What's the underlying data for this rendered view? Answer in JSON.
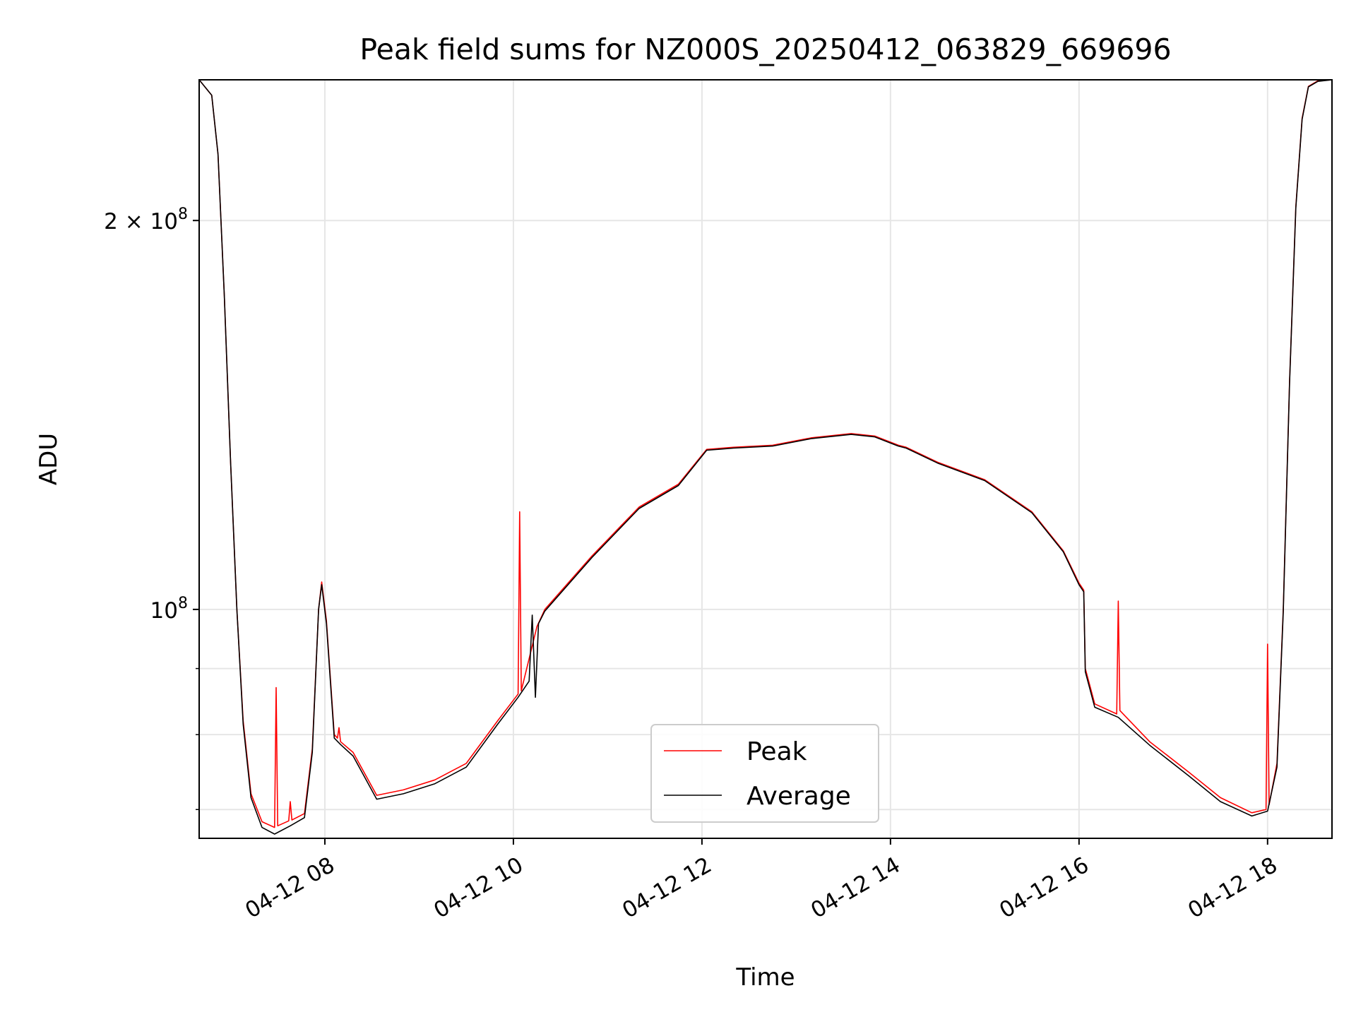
{
  "chart_data": {
    "type": "line",
    "title": "Peak field sums for NZ000S_20250412_063829_669696",
    "xlabel": "Time",
    "ylabel": "ADU",
    "y_scale": "log",
    "ylim": [
      66500000,
      257000000
    ],
    "xlim": [
      "2025-04-12 06:40",
      "2025-04-12 18:41"
    ],
    "x_ticks": [
      {
        "t": "2025-04-12 08:00",
        "label": "04-12 08"
      },
      {
        "t": "2025-04-12 10:00",
        "label": "04-12 10"
      },
      {
        "t": "2025-04-12 12:00",
        "label": "04-12 12"
      },
      {
        "t": "2025-04-12 14:00",
        "label": "04-12 14"
      },
      {
        "t": "2025-04-12 16:00",
        "label": "04-12 16"
      },
      {
        "t": "2025-04-12 18:00",
        "label": "04-12 18"
      }
    ],
    "y_major_ticks": [
      {
        "value": 100000000,
        "base": "10",
        "exp": "8",
        "prefix": ""
      },
      {
        "value": 200000000,
        "base": "10",
        "exp": "8",
        "prefix": "2 × "
      }
    ],
    "y_minor_ticks": [
      70000000,
      80000000,
      90000000
    ],
    "grid": true,
    "legend_position": "lower-center",
    "colors": {
      "peak": "#ff0000",
      "average": "#000000",
      "grid": "#e6e6e6"
    },
    "series": [
      {
        "name": "Peak",
        "color": "#ff0000",
        "points": [
          [
            "2025-04-12 06:40",
            257000000
          ],
          [
            "2025-04-12 06:48",
            250000000
          ],
          [
            "2025-04-12 06:52",
            225000000
          ],
          [
            "2025-04-12 06:56",
            175000000
          ],
          [
            "2025-04-12 07:00",
            130000000
          ],
          [
            "2025-04-12 07:04",
            100000000
          ],
          [
            "2025-04-12 07:08",
            82000000
          ],
          [
            "2025-04-12 07:13",
            72000000
          ],
          [
            "2025-04-12 07:20",
            68500000
          ],
          [
            "2025-04-12 07:28",
            67800000
          ],
          [
            "2025-04-12 07:29",
            87000000
          ],
          [
            "2025-04-12 07:30",
            68000000
          ],
          [
            "2025-04-12 07:37",
            68600000
          ],
          [
            "2025-04-12 07:38",
            71000000
          ],
          [
            "2025-04-12 07:39",
            68700000
          ],
          [
            "2025-04-12 07:47",
            69500000
          ],
          [
            "2025-04-12 07:52",
            78000000
          ],
          [
            "2025-04-12 07:56",
            100000000
          ],
          [
            "2025-04-12 07:58",
            105000000
          ],
          [
            "2025-04-12 08:01",
            98000000
          ],
          [
            "2025-04-12 08:06",
            80000000
          ],
          [
            "2025-04-12 08:08",
            79500000
          ],
          [
            "2025-04-12 08:09",
            81000000
          ],
          [
            "2025-04-12 08:10",
            79000000
          ],
          [
            "2025-04-12 08:18",
            77500000
          ],
          [
            "2025-04-12 08:33",
            71800000
          ],
          [
            "2025-04-12 08:50",
            72500000
          ],
          [
            "2025-04-12 09:10",
            73800000
          ],
          [
            "2025-04-12 09:30",
            76000000
          ],
          [
            "2025-04-12 09:50",
            82000000
          ],
          [
            "2025-04-12 10:03",
            86000000
          ],
          [
            "2025-04-12 10:04",
            119000000
          ],
          [
            "2025-04-12 10:05",
            86500000
          ],
          [
            "2025-04-12 10:15",
            97000000
          ],
          [
            "2025-04-12 10:20",
            100000000
          ],
          [
            "2025-04-12 10:50",
            110000000
          ],
          [
            "2025-04-12 11:20",
            120000000
          ],
          [
            "2025-04-12 11:45",
            125000000
          ],
          [
            "2025-04-12 12:03",
            133000000
          ],
          [
            "2025-04-12 12:20",
            133500000
          ],
          [
            "2025-04-12 12:45",
            134000000
          ],
          [
            "2025-04-12 13:10",
            135800000
          ],
          [
            "2025-04-12 13:35",
            136800000
          ],
          [
            "2025-04-12 13:50",
            136200000
          ],
          [
            "2025-04-12 14:05",
            134000000
          ],
          [
            "2025-04-12 14:10",
            133500000
          ],
          [
            "2025-04-12 14:30",
            130000000
          ],
          [
            "2025-04-12 15:00",
            126000000
          ],
          [
            "2025-04-12 15:30",
            119000000
          ],
          [
            "2025-04-12 15:50",
            111000000
          ],
          [
            "2025-04-12 16:00",
            104800000
          ],
          [
            "2025-04-12 16:03",
            103500000
          ],
          [
            "2025-04-12 16:04",
            90000000
          ],
          [
            "2025-04-12 16:10",
            84500000
          ],
          [
            "2025-04-12 16:24",
            83000000
          ],
          [
            "2025-04-12 16:25",
            101500000
          ],
          [
            "2025-04-12 16:26",
            83500000
          ],
          [
            "2025-04-12 16:45",
            79000000
          ],
          [
            "2025-04-12 17:10",
            74800000
          ],
          [
            "2025-04-12 17:30",
            71500000
          ],
          [
            "2025-04-12 17:50",
            69600000
          ],
          [
            "2025-04-12 17:59",
            70000000
          ],
          [
            "2025-04-12 18:00",
            94000000
          ],
          [
            "2025-04-12 18:01",
            70600000
          ],
          [
            "2025-04-12 18:06",
            76000000
          ],
          [
            "2025-04-12 18:10",
            100000000
          ],
          [
            "2025-04-12 18:14",
            150000000
          ],
          [
            "2025-04-12 18:18",
            205000000
          ],
          [
            "2025-04-12 18:22",
            240000000
          ],
          [
            "2025-04-12 18:26",
            254000000
          ],
          [
            "2025-04-12 18:32",
            256500000
          ],
          [
            "2025-04-12 18:41",
            257000000
          ]
        ]
      },
      {
        "name": "Average",
        "color": "#000000",
        "points": [
          [
            "2025-04-12 06:40",
            257000000
          ],
          [
            "2025-04-12 06:48",
            250000000
          ],
          [
            "2025-04-12 06:52",
            225000000
          ],
          [
            "2025-04-12 06:56",
            175000000
          ],
          [
            "2025-04-12 07:00",
            130000000
          ],
          [
            "2025-04-12 07:04",
            100000000
          ],
          [
            "2025-04-12 07:08",
            81500000
          ],
          [
            "2025-04-12 07:13",
            71500000
          ],
          [
            "2025-04-12 07:20",
            67800000
          ],
          [
            "2025-04-12 07:28",
            67000000
          ],
          [
            "2025-04-12 07:38",
            68000000
          ],
          [
            "2025-04-12 07:47",
            69000000
          ],
          [
            "2025-04-12 07:52",
            77500000
          ],
          [
            "2025-04-12 07:56",
            100000000
          ],
          [
            "2025-04-12 07:58",
            104500000
          ],
          [
            "2025-04-12 08:01",
            97500000
          ],
          [
            "2025-04-12 08:06",
            79500000
          ],
          [
            "2025-04-12 08:10",
            78600000
          ],
          [
            "2025-04-12 08:18",
            77000000
          ],
          [
            "2025-04-12 08:33",
            71300000
          ],
          [
            "2025-04-12 08:50",
            72000000
          ],
          [
            "2025-04-12 09:10",
            73300000
          ],
          [
            "2025-04-12 09:30",
            75500000
          ],
          [
            "2025-04-12 09:50",
            81500000
          ],
          [
            "2025-04-12 10:03",
            85500000
          ],
          [
            "2025-04-12 10:10",
            88000000
          ],
          [
            "2025-04-12 10:12",
            99000000
          ],
          [
            "2025-04-12 10:14",
            85500000
          ],
          [
            "2025-04-12 10:16",
            97500000
          ],
          [
            "2025-04-12 10:20",
            99700000
          ],
          [
            "2025-04-12 10:50",
            109700000
          ],
          [
            "2025-04-12 11:20",
            119700000
          ],
          [
            "2025-04-12 11:45",
            124700000
          ],
          [
            "2025-04-12 12:03",
            132800000
          ],
          [
            "2025-04-12 12:20",
            133300000
          ],
          [
            "2025-04-12 12:45",
            133800000
          ],
          [
            "2025-04-12 13:10",
            135600000
          ],
          [
            "2025-04-12 13:35",
            136600000
          ],
          [
            "2025-04-12 13:50",
            136000000
          ],
          [
            "2025-04-12 14:05",
            133800000
          ],
          [
            "2025-04-12 14:10",
            133300000
          ],
          [
            "2025-04-12 14:30",
            129800000
          ],
          [
            "2025-04-12 15:00",
            125800000
          ],
          [
            "2025-04-12 15:30",
            118800000
          ],
          [
            "2025-04-12 15:50",
            110800000
          ],
          [
            "2025-04-12 16:00",
            104500000
          ],
          [
            "2025-04-12 16:03",
            103200000
          ],
          [
            "2025-04-12 16:04",
            89500000
          ],
          [
            "2025-04-12 16:10",
            84000000
          ],
          [
            "2025-04-12 16:25",
            82500000
          ],
          [
            "2025-04-12 16:45",
            78500000
          ],
          [
            "2025-04-12 17:10",
            74300000
          ],
          [
            "2025-04-12 17:30",
            71000000
          ],
          [
            "2025-04-12 17:50",
            69200000
          ],
          [
            "2025-04-12 18:00",
            69800000
          ],
          [
            "2025-04-12 18:06",
            75500000
          ],
          [
            "2025-04-12 18:10",
            99500000
          ],
          [
            "2025-04-12 18:14",
            149500000
          ],
          [
            "2025-04-12 18:18",
            204500000
          ],
          [
            "2025-04-12 18:22",
            239500000
          ],
          [
            "2025-04-12 18:26",
            253800000
          ],
          [
            "2025-04-12 18:32",
            256300000
          ],
          [
            "2025-04-12 18:41",
            257000000
          ]
        ]
      }
    ]
  }
}
